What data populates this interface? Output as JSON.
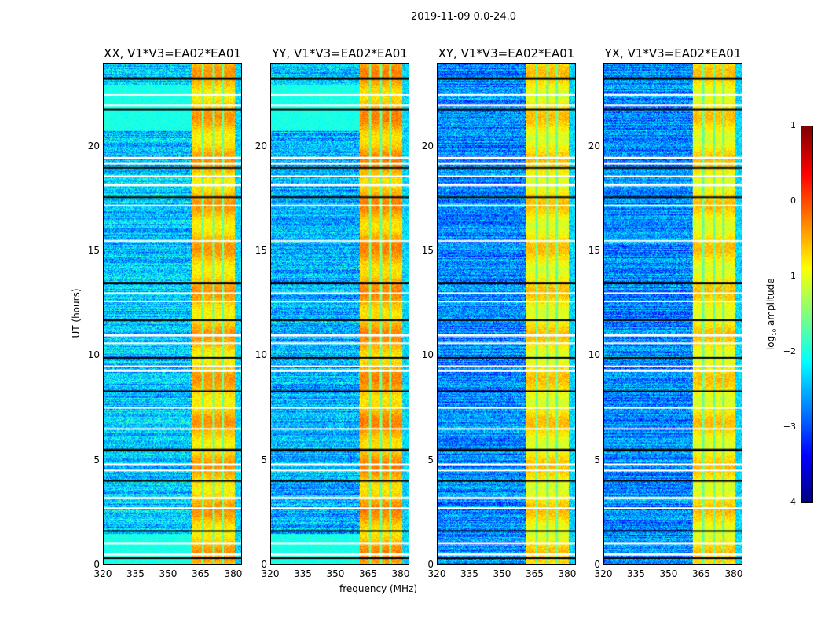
{
  "chart_data": {
    "type": "heatmap",
    "title": "2019-11-09 0.0-24.0",
    "xlabel": "frequency (MHz)",
    "ylabel": "UT (hours)",
    "xlim": [
      320,
      384
    ],
    "ylim": [
      0,
      24
    ],
    "xticks": [
      "320",
      "335",
      "350",
      "365",
      "380"
    ],
    "xtick_values": [
      320,
      335,
      350,
      365,
      380
    ],
    "yticks": [
      "0",
      "5",
      "10",
      "15",
      "20"
    ],
    "ytick_values": [
      0,
      5,
      10,
      15,
      20
    ],
    "panels": [
      {
        "title": "XX, V1*V3=EA02*EA01",
        "rfi_band_mhz": [
          361,
          381
        ],
        "rfi_level_log10": -0.6,
        "background_log10": -2.4
      },
      {
        "title": "YY, V1*V3=EA02*EA01",
        "rfi_band_mhz": [
          361,
          381
        ],
        "rfi_level_log10": -0.5,
        "background_log10": -2.5
      },
      {
        "title": "XY, V1*V3=EA02*EA01",
        "rfi_band_mhz": [
          361,
          381
        ],
        "rfi_level_log10": -0.8,
        "background_log10": -2.7
      },
      {
        "title": "YX, V1*V3=EA02*EA01",
        "rfi_band_mhz": [
          361,
          381
        ],
        "rfi_level_log10": -0.8,
        "background_log10": -2.7
      }
    ],
    "flagged_times_ut": [
      23.3,
      22.5,
      22.0,
      21.8,
      19.5,
      19.2,
      19.0,
      18.6,
      18.2,
      17.6,
      17.2,
      15.5,
      13.5,
      13.0,
      12.6,
      11.7,
      11.0,
      10.6,
      9.9,
      9.5,
      9.3,
      8.3,
      7.5,
      6.5,
      5.5,
      4.8,
      4.5,
      4.0,
      3.2,
      2.7,
      1.6,
      1.0,
      0.5,
      0.3
    ],
    "colorbar": {
      "label": "log10 amplitude",
      "label_main": "log",
      "label_sub": "10",
      "label_rest": " amplitude",
      "range": [
        -4,
        1
      ],
      "ticks": [
        "1",
        "0",
        "−1",
        "−2",
        "−3",
        "−4"
      ],
      "tick_values": [
        1,
        0,
        -1,
        -2,
        -3,
        -4
      ],
      "colormap": "jet"
    }
  }
}
